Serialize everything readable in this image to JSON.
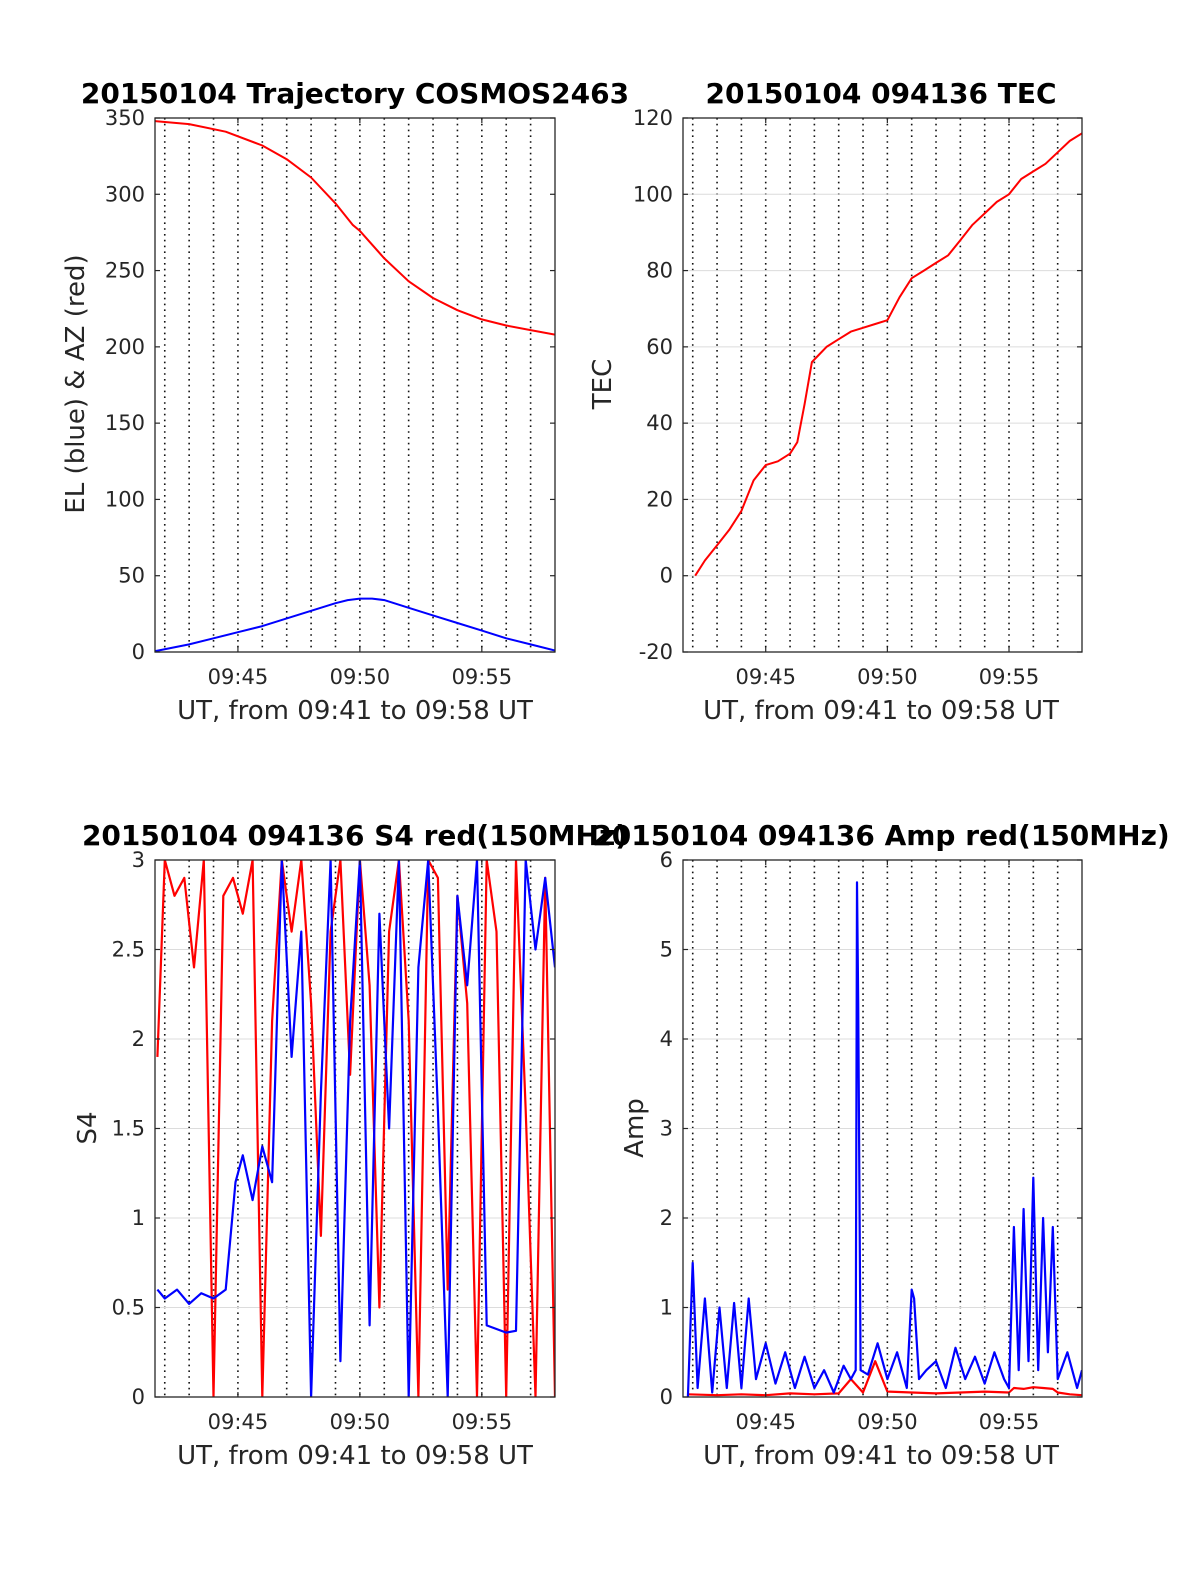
{
  "figure": {
    "panels": [
      {
        "title": "20150104 Trajectory COSMOS2463",
        "ylabel": "EL (blue) & AZ (red)",
        "xlabel": "UT, from 09:41 to 09:58 UT"
      },
      {
        "title": "20150104 094136 TEC",
        "ylabel": "TEC",
        "xlabel": "UT, from 09:41 to 09:58 UT"
      },
      {
        "title": "20150104 094136 S4 red(150MHz)",
        "ylabel": "S4",
        "xlabel": "UT, from 09:41 to 09:58 UT"
      },
      {
        "title": "20150104 094136 Amp red(150MHz)",
        "ylabel": "Amp",
        "xlabel": "UT, from 09:41 to 09:58 UT"
      }
    ]
  },
  "chart_data": [
    {
      "type": "line",
      "title": "20150104 Trajectory COSMOS2463",
      "xlabel": "UT, from 09:41 to 09:58 UT",
      "ylabel": "EL (blue) & AZ (red)",
      "x_unit": "minutes after 09:00 UT",
      "xlim": [
        41.6,
        58
      ],
      "ylim": [
        0,
        350
      ],
      "xticks": [
        45,
        50,
        55
      ],
      "xtick_labels": [
        "09:45",
        "09:50",
        "09:55"
      ],
      "yticks": [
        0,
        50,
        100,
        150,
        200,
        250,
        300,
        350
      ],
      "ytick_labels": [
        "0",
        "50",
        "100",
        "150",
        "200",
        "250",
        "300",
        "350"
      ],
      "grid": "dotted vertical lines",
      "colors": {
        "AZ": "#ff0000",
        "EL": "#0000ff"
      },
      "series": [
        {
          "color": "#ff0000",
          "x": [
            41.6,
            43,
            44.5,
            46,
            47,
            48,
            49,
            49.7,
            50,
            51,
            52,
            53,
            54,
            55,
            56,
            57,
            58
          ],
          "values": [
            348,
            346,
            341,
            332,
            323,
            311,
            294,
            280,
            276,
            258,
            243,
            232,
            224,
            218,
            214,
            211,
            208
          ]
        },
        {
          "color": "#0000ff",
          "x": [
            41.6,
            43,
            44,
            45,
            46,
            47,
            48,
            49,
            49.5,
            50,
            50.5,
            51,
            52,
            53,
            54,
            55,
            56,
            57,
            58
          ],
          "values": [
            0.5,
            5,
            9,
            13,
            17,
            22,
            27,
            32,
            34,
            35,
            35,
            34,
            29,
            24,
            19,
            14,
            9,
            5,
            1
          ]
        }
      ]
    },
    {
      "type": "line",
      "title": "20150104 094136 TEC",
      "xlabel": "UT, from 09:41 to 09:58 UT",
      "ylabel": "TEC",
      "x_unit": "minutes after 09:00 UT",
      "xlim": [
        41.6,
        58
      ],
      "ylim": [
        -20,
        120
      ],
      "xticks": [
        45,
        50,
        55
      ],
      "xtick_labels": [
        "09:45",
        "09:50",
        "09:55"
      ],
      "yticks": [
        -20,
        0,
        20,
        40,
        60,
        80,
        100,
        120
      ],
      "ytick_labels": [
        "-20",
        "0",
        "20",
        "40",
        "60",
        "80",
        "100",
        "120"
      ],
      "grid": "dotted vertical and horizontal lines",
      "colors": {
        "TEC": "#ff0000"
      },
      "series": [
        {
          "color": "#ff0000",
          "x": [
            42.1,
            42.5,
            43,
            43.5,
            44,
            44.5,
            45,
            45.5,
            46,
            46.3,
            46.6,
            46.9,
            47.2,
            47.5,
            48,
            48.5,
            49,
            49.5,
            50,
            50.5,
            51,
            51.5,
            52,
            52.5,
            53,
            53.5,
            54,
            54.5,
            55,
            55.5,
            56,
            56.5,
            57,
            57.5,
            58
          ],
          "values": [
            0,
            4,
            8,
            12,
            17,
            25,
            29,
            30,
            32,
            35,
            45,
            56,
            58,
            60,
            62,
            64,
            65,
            66,
            67,
            73,
            78,
            80,
            82,
            84,
            88,
            92,
            95,
            98,
            100,
            104,
            106,
            108,
            111,
            114,
            116
          ]
        }
      ]
    },
    {
      "type": "line",
      "title": "20150104 094136 S4 red(150MHz)",
      "xlabel": "UT, from 09:41 to 09:58 UT",
      "ylabel": "S4",
      "x_unit": "minutes after 09:00 UT",
      "xlim": [
        41.6,
        58
      ],
      "ylim": [
        0,
        3
      ],
      "xticks": [
        45,
        50,
        55
      ],
      "xtick_labels": [
        "09:45",
        "09:50",
        "09:55"
      ],
      "yticks": [
        0,
        0.5,
        1,
        1.5,
        2,
        2.5,
        3
      ],
      "ytick_labels": [
        "0",
        "0.5",
        "1",
        "1.5",
        "2",
        "2.5",
        "3"
      ],
      "grid": "dotted vertical and horizontal lines",
      "colors": {
        "150MHz": "#ff0000",
        "other": "#0000ff"
      },
      "series": [
        {
          "color": "#ff0000",
          "x": [
            41.7,
            42,
            42.4,
            42.8,
            43.2,
            43.6,
            44,
            44.4,
            44.8,
            45.2,
            45.6,
            46,
            46.4,
            46.8,
            47.2,
            47.6,
            48,
            48.4,
            48.8,
            49.2,
            49.6,
            50,
            50.4,
            50.8,
            51.2,
            51.6,
            52,
            52.4,
            52.8,
            53.2,
            53.6,
            54,
            54.4,
            54.8,
            55.2,
            55.6,
            56,
            56.4,
            56.8,
            57.2,
            57.6,
            58
          ],
          "values": [
            1.9,
            3,
            2.8,
            2.9,
            2.4,
            3,
            0,
            2.8,
            2.9,
            2.7,
            3,
            0,
            2.1,
            3,
            2.6,
            3,
            2.2,
            0.9,
            2.6,
            3,
            1.8,
            3,
            2.3,
            0.5,
            2.6,
            3,
            2.1,
            0,
            3,
            2.9,
            0.6,
            2.8,
            2.2,
            0,
            3,
            2.6,
            0,
            3,
            1.6,
            0,
            2.9,
            0
          ]
        },
        {
          "color": "#0000ff",
          "x": [
            41.7,
            42,
            42.5,
            43,
            43.5,
            44,
            44.5,
            44.9,
            45.2,
            45.6,
            46,
            46.4,
            46.8,
            47.2,
            47.6,
            48,
            48.4,
            48.8,
            49.2,
            49.6,
            50,
            50.4,
            50.8,
            51.2,
            51.6,
            52,
            52.4,
            52.8,
            53.2,
            53.6,
            54,
            54.4,
            54.8,
            55.2,
            55.6,
            56,
            56.4,
            56.8,
            57.2,
            57.6,
            58
          ],
          "values": [
            0.6,
            0.55,
            0.6,
            0.52,
            0.58,
            0.55,
            0.6,
            1.2,
            1.35,
            1.1,
            1.4,
            1.2,
            3,
            1.9,
            2.6,
            0,
            1.7,
            3,
            0.2,
            2.1,
            3,
            0.4,
            2.7,
            1.5,
            3,
            0,
            2.4,
            3,
            1.6,
            0,
            2.8,
            2.3,
            3,
            0.4,
            0.38,
            0.36,
            0.37,
            3,
            2.5,
            2.9,
            2.4
          ]
        }
      ]
    },
    {
      "type": "line",
      "title": "20150104 094136 Amp red(150MHz)",
      "xlabel": "UT, from 09:41 to 09:58 UT",
      "ylabel": "Amp",
      "x_unit": "minutes after 09:00 UT",
      "xlim": [
        41.6,
        58
      ],
      "ylim": [
        0,
        6
      ],
      "xticks": [
        45,
        50,
        55
      ],
      "xtick_labels": [
        "09:45",
        "09:50",
        "09:55"
      ],
      "yticks": [
        0,
        1,
        2,
        3,
        4,
        5,
        6
      ],
      "ytick_labels": [
        "0",
        "1",
        "2",
        "3",
        "4",
        "5",
        "6"
      ],
      "grid": "dotted vertical and horizontal lines",
      "colors": {
        "150MHz": "#ff0000",
        "other": "#0000ff"
      },
      "series": [
        {
          "color": "#ff0000",
          "x": [
            41.8,
            43,
            44,
            45,
            46,
            47,
            48,
            48.5,
            49,
            49.5,
            50,
            51,
            52,
            53,
            54,
            55,
            55.2,
            55.6,
            56,
            56.4,
            56.8,
            57,
            57.5,
            58
          ],
          "values": [
            0.03,
            0.02,
            0.03,
            0.02,
            0.04,
            0.03,
            0.04,
            0.2,
            0.05,
            0.4,
            0.06,
            0.05,
            0.04,
            0.05,
            0.06,
            0.05,
            0.1,
            0.09,
            0.11,
            0.1,
            0.09,
            0.05,
            0.03,
            0.02
          ]
        },
        {
          "color": "#0000ff",
          "x": [
            41.8,
            42,
            42.2,
            42.5,
            42.8,
            43.1,
            43.4,
            43.7,
            44,
            44.3,
            44.6,
            45,
            45.4,
            45.8,
            46.2,
            46.6,
            47,
            47.4,
            47.8,
            48.2,
            48.5,
            48.7,
            48.75,
            48.8,
            48.9,
            49.2,
            49.6,
            50,
            50.4,
            50.8,
            51,
            51.1,
            51.3,
            51.6,
            52,
            52.4,
            52.8,
            53.2,
            53.6,
            54,
            54.4,
            54.8,
            55,
            55.2,
            55.4,
            55.6,
            55.8,
            56,
            56.2,
            56.4,
            56.6,
            56.8,
            57,
            57.4,
            57.8,
            58
          ],
          "values": [
            0,
            1.5,
            0.1,
            1.1,
            0.05,
            1.0,
            0.1,
            1.05,
            0.1,
            1.1,
            0.2,
            0.6,
            0.15,
            0.5,
            0.1,
            0.45,
            0.1,
            0.3,
            0.05,
            0.35,
            0.2,
            0.3,
            5.75,
            4.4,
            0.3,
            0.25,
            0.6,
            0.2,
            0.5,
            0.1,
            1.2,
            1.1,
            0.2,
            0.3,
            0.4,
            0.1,
            0.55,
            0.2,
            0.45,
            0.15,
            0.5,
            0.2,
            0.1,
            1.9,
            0.3,
            2.1,
            0.4,
            2.45,
            0.3,
            2.0,
            0.5,
            1.9,
            0.2,
            0.5,
            0.1,
            0.3
          ]
        }
      ]
    }
  ]
}
